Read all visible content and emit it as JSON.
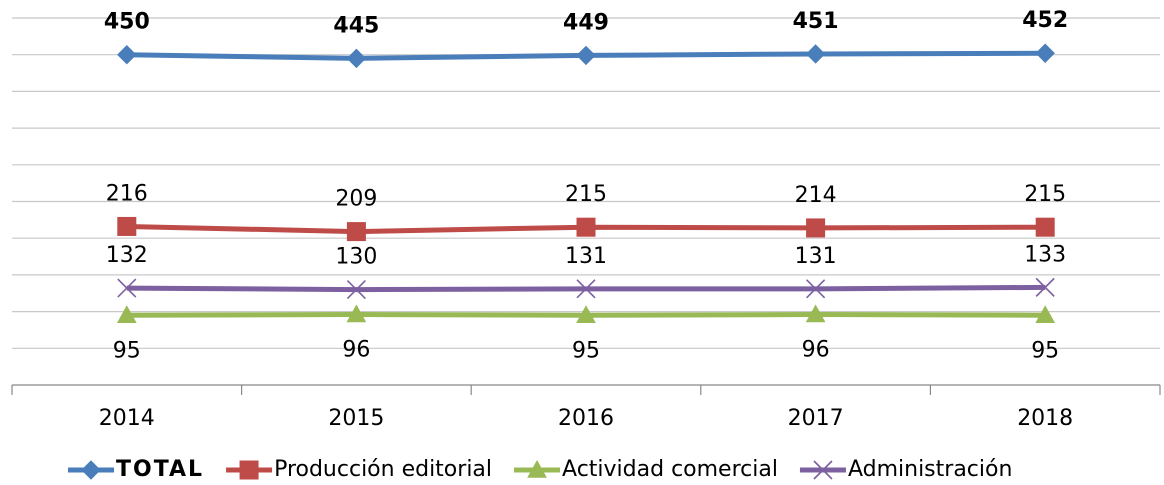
{
  "chart_data": {
    "type": "line",
    "categories": [
      "2014",
      "2015",
      "2016",
      "2017",
      "2018"
    ],
    "series": [
      {
        "name": "TOTAL",
        "color": "#4a7ebb",
        "marker": "diamond",
        "label_position": "above",
        "bold": true,
        "values": [
          450,
          445,
          449,
          451,
          452
        ]
      },
      {
        "name": "Producción editorial",
        "color": "#be4b48",
        "marker": "square",
        "label_position": "above",
        "bold": false,
        "values": [
          216,
          209,
          215,
          214,
          215
        ]
      },
      {
        "name": "Actividad comercial",
        "color": "#98b954",
        "marker": "triangle",
        "label_position": "below",
        "bold": false,
        "values": [
          95,
          96,
          95,
          96,
          95
        ]
      },
      {
        "name": "Administración",
        "color": "#7d60a0",
        "marker": "x",
        "label_position": "above",
        "bold": false,
        "values": [
          132,
          130,
          131,
          131,
          133
        ]
      }
    ],
    "ylim": [
      0,
      500
    ],
    "yticks": [
      0,
      50,
      100,
      150,
      200,
      250,
      300,
      350,
      400,
      450,
      500
    ],
    "grid": true,
    "legend": "bottom"
  }
}
